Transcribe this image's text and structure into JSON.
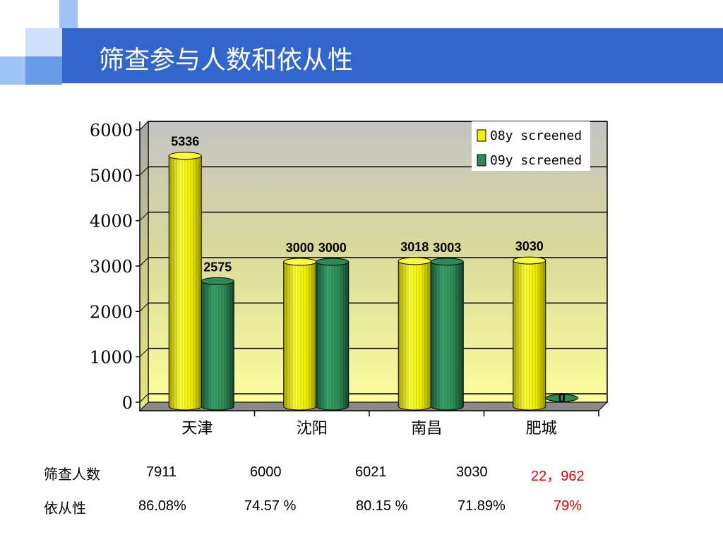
{
  "slide": {
    "title": "筛查参与人数和依从性"
  },
  "chart_data": {
    "type": "bar",
    "categories": [
      "天津",
      "沈阳",
      "南昌",
      "肥城"
    ],
    "series": [
      {
        "name": "08y screened",
        "values": [
          5336,
          3000,
          3018,
          3030
        ],
        "color": "#f2f200"
      },
      {
        "name": "09y screened",
        "values": [
          2575,
          3000,
          3003,
          0
        ],
        "color": "#2e8b57"
      }
    ],
    "ylim": [
      0,
      6000
    ],
    "yticks": [
      0,
      1000,
      2000,
      3000,
      4000,
      5000,
      6000
    ],
    "data_labels": true,
    "grid": true,
    "legend_position": "top-right",
    "xlabel": "",
    "ylabel": ""
  },
  "table": {
    "rows": [
      {
        "label": "筛查人数",
        "values": [
          "7911",
          "6000",
          "6021",
          "3030",
          "22，962"
        ]
      },
      {
        "label": "依从性",
        "values": [
          "86.08%",
          "74.57 %",
          "80.15 %",
          "71.89%",
          "79%"
        ]
      }
    ],
    "highlight_color": "#e00000"
  }
}
